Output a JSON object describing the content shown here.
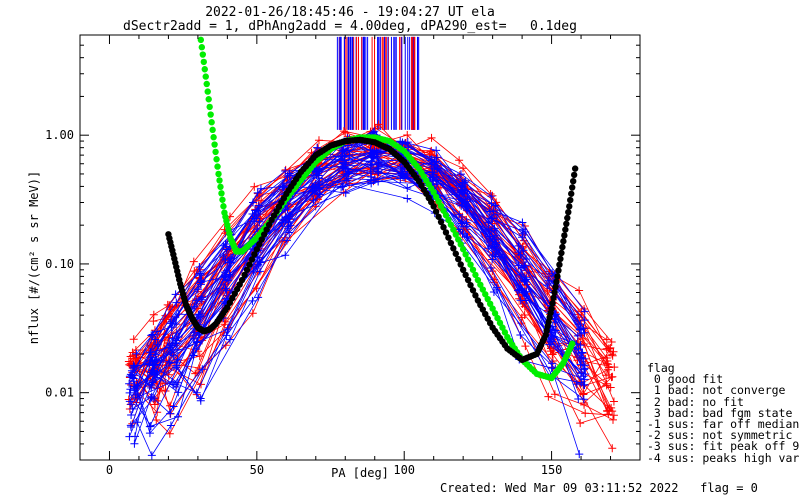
{
  "header": {
    "line1": "2022-01-26/18:45:46 - 19:04:27 UT ela",
    "line2": "dSectr2add = 1, dPhAng2add = 4.00deg, dPA290_est=   0.1deg"
  },
  "footer": {
    "created": "Created: Wed Mar 09 03:11:52 2022",
    "flag": "flag = 0"
  },
  "legend": {
    "title": "flag",
    "items": [
      " 0 good fit",
      " 1 bad: not converge",
      " 2 bad: no fit",
      " 3 bad: bad fgm state",
      "-1 sus: far off median",
      "-2 sus: not symmetric",
      "-3 sus: fit peak off 90",
      "-4 sus: peaks high var"
    ]
  },
  "chart_data": {
    "type": "line",
    "xlabel": "PA [deg]",
    "ylabel": "nflux [#/(cm² s sr MeV)]",
    "xlim": [
      -10,
      180
    ],
    "ylim": [
      0.003,
      6.0
    ],
    "y_scale": "log",
    "x_ticks": [
      0,
      50,
      100,
      150
    ],
    "y_ticks": [
      0.01,
      0.1,
      1.0
    ],
    "y_tick_labels": [
      "0.01",
      "0.10",
      "1.00"
    ],
    "grid": false,
    "colors": {
      "red": "#ff0000",
      "blue": "#0000ff",
      "green": "#00ee00",
      "black": "#000000",
      "axes": "#000000"
    },
    "series": [
      {
        "color": "red",
        "marker": "plus",
        "note": "outgoing/ascending sector spectra",
        "x": [
          8,
          15,
          20,
          30,
          40,
          50,
          60,
          70,
          80,
          90,
          100,
          110,
          120,
          130,
          140,
          150,
          160,
          170
        ],
        "peak": 0.95,
        "floor": 0.006
      },
      {
        "color": "blue",
        "marker": "plus",
        "note": "incoming/descending sector spectra",
        "x": [
          8,
          15,
          22,
          30,
          40,
          50,
          60,
          70,
          80,
          90,
          100,
          110,
          120,
          130,
          140,
          150,
          160
        ],
        "peak": 0.85,
        "floor": 0.005
      },
      {
        "color": "green",
        "marker": "circle",
        "x": [
          31,
          33,
          35,
          37,
          39,
          41,
          43,
          45,
          50,
          55,
          60,
          65,
          70,
          75,
          80,
          85,
          90,
          95,
          100,
          105,
          110,
          115,
          120,
          125,
          130,
          135,
          140,
          145,
          150,
          154,
          157
        ],
        "y": [
          5.5,
          2.5,
          1.1,
          0.5,
          0.25,
          0.16,
          0.125,
          0.125,
          0.16,
          0.22,
          0.32,
          0.45,
          0.62,
          0.78,
          0.9,
          0.96,
          0.96,
          0.9,
          0.75,
          0.55,
          0.36,
          0.22,
          0.13,
          0.075,
          0.045,
          0.027,
          0.018,
          0.014,
          0.013,
          0.017,
          0.024
        ]
      },
      {
        "color": "black",
        "marker": "circle",
        "x": [
          20,
          22,
          24,
          26,
          28,
          30,
          32,
          34,
          36,
          40,
          45,
          50,
          55,
          60,
          65,
          70,
          75,
          80,
          85,
          90,
          95,
          100,
          105,
          110,
          115,
          120,
          125,
          130,
          135,
          140,
          145,
          148,
          150,
          152,
          154,
          156,
          158
        ],
        "y": [
          0.17,
          0.11,
          0.07,
          0.048,
          0.038,
          0.032,
          0.03,
          0.031,
          0.034,
          0.046,
          0.075,
          0.13,
          0.22,
          0.35,
          0.52,
          0.7,
          0.83,
          0.9,
          0.92,
          0.88,
          0.78,
          0.62,
          0.44,
          0.28,
          0.16,
          0.09,
          0.052,
          0.032,
          0.022,
          0.018,
          0.02,
          0.028,
          0.045,
          0.08,
          0.15,
          0.28,
          0.55
        ]
      }
    ],
    "vertical_bars": {
      "x_range": [
        77,
        105
      ],
      "colors": [
        "blue",
        "red"
      ],
      "top": 5.8,
      "bottom": 1.1
    }
  }
}
